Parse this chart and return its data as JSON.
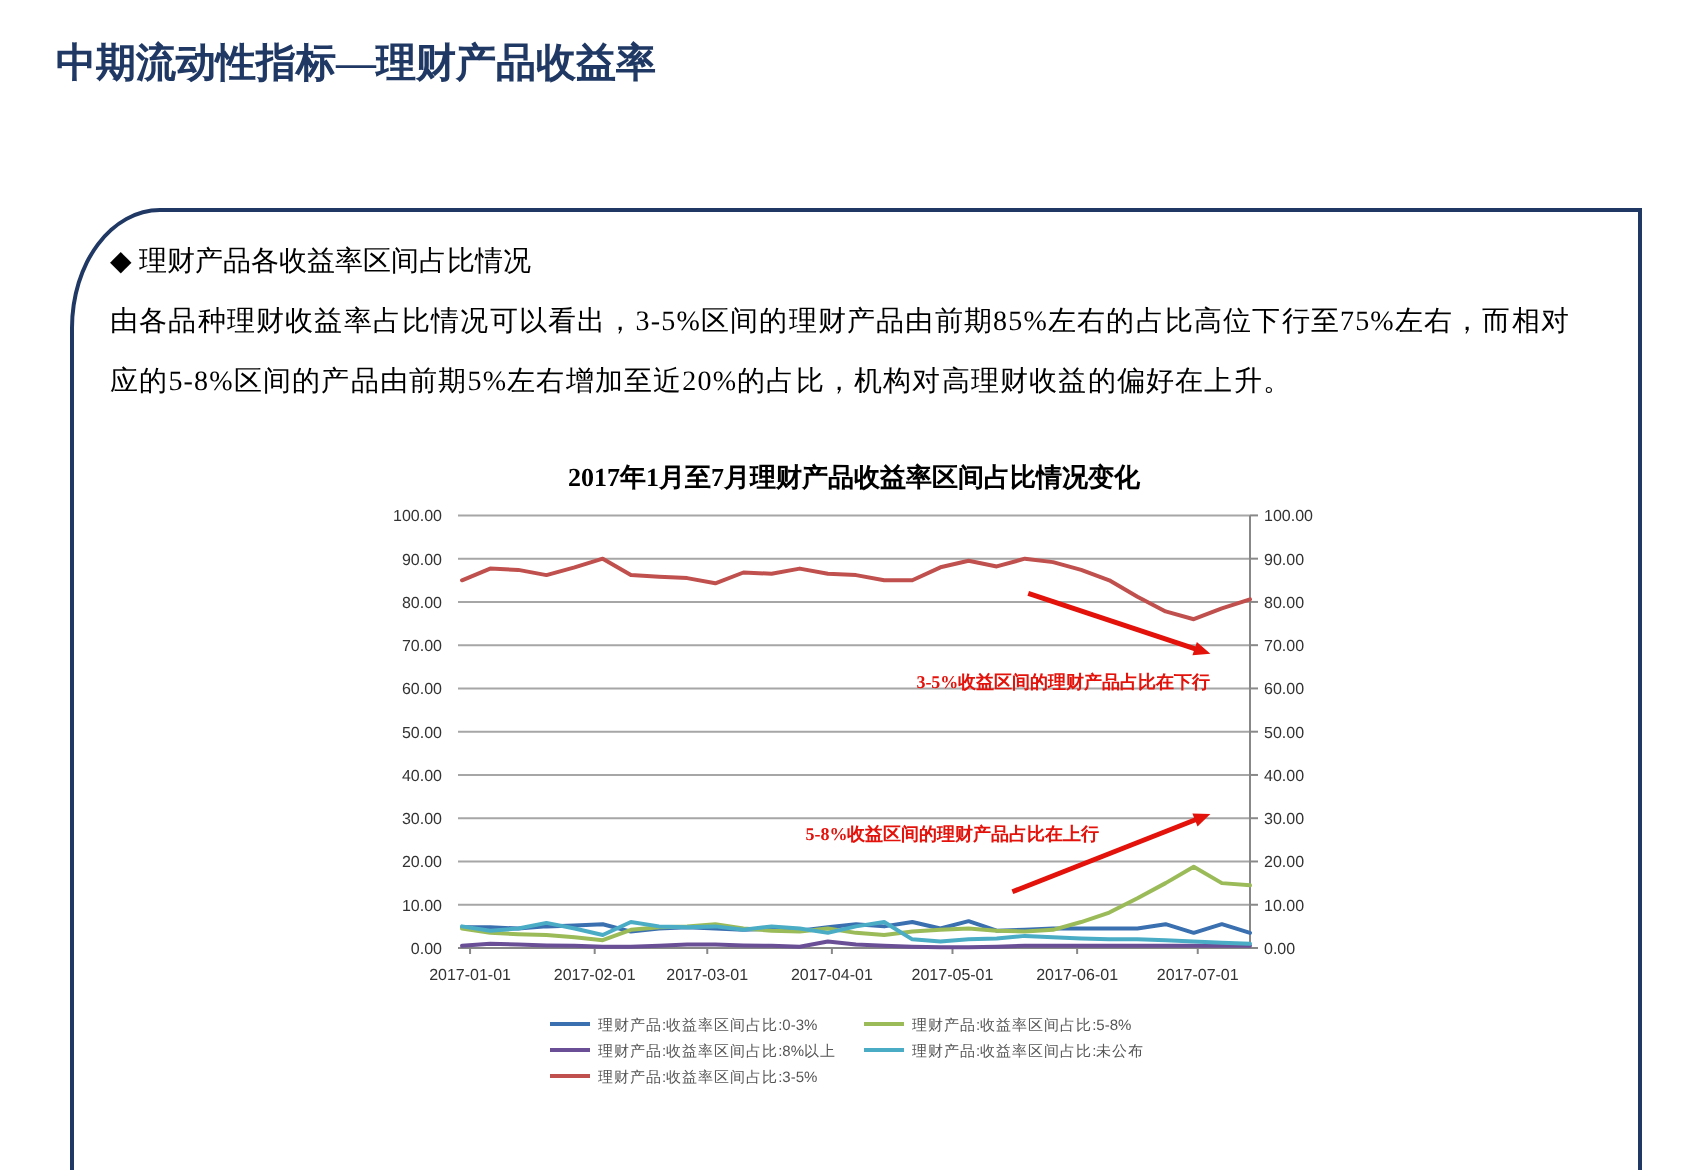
{
  "chart_data": {
    "type": "line",
    "title": "2017年1月至7月理财产品收益率区间占比情况变化",
    "x": [
      "2016-12-30",
      "2017-01-06",
      "2017-01-13",
      "2017-01-20",
      "2017-01-27",
      "2017-02-03",
      "2017-02-10",
      "2017-02-17",
      "2017-02-24",
      "2017-03-03",
      "2017-03-10",
      "2017-03-17",
      "2017-03-24",
      "2017-03-31",
      "2017-04-07",
      "2017-04-14",
      "2017-04-21",
      "2017-04-28",
      "2017-05-05",
      "2017-05-12",
      "2017-05-19",
      "2017-05-26",
      "2017-06-02",
      "2017-06-09",
      "2017-06-16",
      "2017-06-23",
      "2017-06-30",
      "2017-07-07",
      "2017-07-14"
    ],
    "series": [
      {
        "name": "理财产品:收益率区间占比:0-3%",
        "color": "#3a6fb0",
        "values": [
          4.8,
          4.8,
          4.5,
          5.0,
          5.2,
          5.5,
          3.8,
          4.5,
          4.8,
          4.5,
          4.2,
          4.5,
          4.0,
          4.8,
          5.5,
          5.0,
          6.0,
          4.5,
          6.2,
          4.0,
          4.2,
          4.5,
          4.5,
          4.5,
          4.5,
          5.5,
          3.5,
          5.5,
          3.5
        ]
      },
      {
        "name": "理财产品:收益率区间占比:5-8%",
        "color": "#9bbb59",
        "values": [
          4.5,
          3.5,
          3.2,
          3.0,
          2.5,
          1.8,
          4.2,
          4.8,
          5.0,
          5.5,
          4.5,
          4.0,
          3.8,
          4.5,
          3.5,
          3.0,
          3.8,
          4.2,
          4.5,
          4.0,
          3.8,
          4.2,
          6.0,
          8.2,
          11.5,
          15.0,
          18.8,
          15.0,
          14.5
        ]
      },
      {
        "name": "理财产品:收益率区间占比:8%以上",
        "color": "#6a4f96",
        "values": [
          0.5,
          1.0,
          0.8,
          0.6,
          0.5,
          0.3,
          0.3,
          0.5,
          0.8,
          0.8,
          0.6,
          0.5,
          0.3,
          1.5,
          0.8,
          0.5,
          0.3,
          0.2,
          0.2,
          0.3,
          0.5,
          0.5,
          0.5,
          0.5,
          0.5,
          0.5,
          0.5,
          0.5,
          0.5
        ]
      },
      {
        "name": "理财产品:收益率区间占比:未公布",
        "color": "#4bacc6",
        "values": [
          5.0,
          4.0,
          4.5,
          5.8,
          4.5,
          3.0,
          6.0,
          5.0,
          4.8,
          5.0,
          4.2,
          5.0,
          4.5,
          3.5,
          5.0,
          6.0,
          2.0,
          1.5,
          2.0,
          2.2,
          2.8,
          2.5,
          2.2,
          2.0,
          2.0,
          1.8,
          1.5,
          1.2,
          1.0
        ]
      },
      {
        "name": "理财产品:收益率区间占比:3-5%",
        "color": "#c0504d",
        "values": [
          85.0,
          87.7,
          87.4,
          86.2,
          88.0,
          90.0,
          86.2,
          85.8,
          85.5,
          84.3,
          86.8,
          86.5,
          87.7,
          86.5,
          86.2,
          85.0,
          85.0,
          88.0,
          89.5,
          88.2,
          90.0,
          89.2,
          87.4,
          85.0,
          81.2,
          77.8,
          76.0,
          78.5,
          80.6
        ]
      }
    ],
    "xlim": [
      "2016-12-29",
      "2017-07-14"
    ],
    "xticks": [
      "2017-01-01",
      "2017-02-01",
      "2017-03-01",
      "2017-04-01",
      "2017-05-01",
      "2017-06-01",
      "2017-07-01"
    ],
    "ylim": [
      0,
      100
    ],
    "yticks": [
      {
        "value": 0,
        "label": "0.00"
      },
      {
        "value": 10,
        "label": "10.00"
      },
      {
        "value": 20,
        "label": "20.00"
      },
      {
        "value": 30,
        "label": "30.00"
      },
      {
        "value": 40,
        "label": "40.00"
      },
      {
        "value": 50,
        "label": "50.00"
      },
      {
        "value": 60,
        "label": "60.00"
      },
      {
        "value": 70,
        "label": "70.00"
      },
      {
        "value": 80,
        "label": "80.00"
      },
      {
        "value": 90,
        "label": "90.00"
      },
      {
        "value": 100,
        "label": "100.00"
      }
    ],
    "y2lim": [
      0,
      100
    ],
    "y2ticks": [
      {
        "value": 0,
        "label": "0.00"
      },
      {
        "value": 10,
        "label": "10.00"
      },
      {
        "value": 20,
        "label": "20.00"
      },
      {
        "value": 30,
        "label": "30.00"
      },
      {
        "value": 40,
        "label": "40.00"
      },
      {
        "value": 50,
        "label": "50.00"
      },
      {
        "value": 60,
        "label": "60.00"
      },
      {
        "value": 70,
        "label": "70.00"
      },
      {
        "value": 80,
        "label": "80.00"
      },
      {
        "value": 90,
        "label": "90.00"
      },
      {
        "value": 100,
        "label": "100.00"
      }
    ],
    "grid": "y",
    "legend": "bottom",
    "annotations": [
      "中期流动性指标—理财产品收益率",
      "◆  理财产品各收益率区间占比情况",
      "由各品种理财收益率占比情况可以看出，3-5%区间的理财产品由前期85%左右的占比高位下行至75%左右，而相对应的5-8%区间的产品由前期5%左右增加至近20%的占比，机构对高理财收益的偏好在上升。",
      "3-5%收益区间的理财产品占比在下行",
      "5-8%收益区间的理财产品占比在上行"
    ]
  }
}
